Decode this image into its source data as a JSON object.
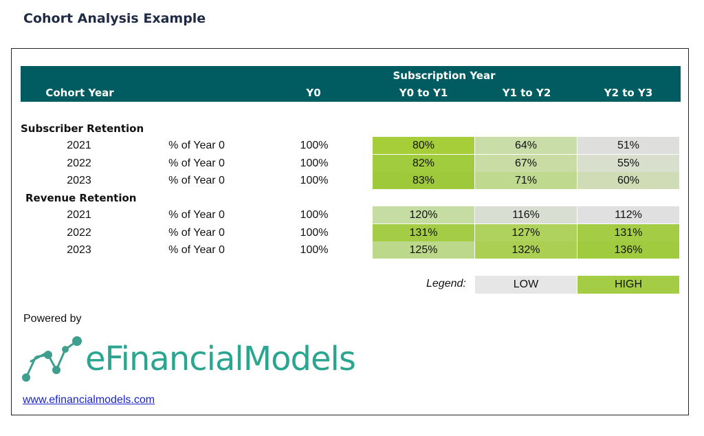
{
  "title": "Cohort Analysis Example",
  "header": {
    "subscription_year": "Subscription Year",
    "cohort_year": "Cohort Year",
    "y0": "Y0",
    "y0_y1": "Y0 to Y1",
    "y1_y2": "Y1 to Y2",
    "y2_y3": "Y2 to Y3"
  },
  "subscriber": {
    "label": "Subscriber Retention",
    "rows": [
      {
        "year": "2021",
        "metric": "% of Year 0",
        "y0": "100%",
        "v": [
          "80%",
          "64%",
          "51%"
        ]
      },
      {
        "year": "2022",
        "metric": "% of Year 0",
        "y0": "100%",
        "v": [
          "82%",
          "67%",
          "55%"
        ]
      },
      {
        "year": "2023",
        "metric": "% of Year 0",
        "y0": "100%",
        "v": [
          "83%",
          "71%",
          "60%"
        ]
      }
    ]
  },
  "revenue": {
    "label": "Revenue Retention",
    "rows": [
      {
        "year": "2021",
        "metric": "% of Year 0",
        "y0": "100%",
        "v": [
          "120%",
          "116%",
          "112%"
        ]
      },
      {
        "year": "2022",
        "metric": "% of Year 0",
        "y0": "100%",
        "v": [
          "131%",
          "127%",
          "131%"
        ]
      },
      {
        "year": "2023",
        "metric": "% of Year 0",
        "y0": "100%",
        "v": [
          "125%",
          "132%",
          "136%"
        ]
      }
    ]
  },
  "legend": {
    "label": "Legend:",
    "low": "LOW",
    "high": "HIGH"
  },
  "colors": {
    "header": "#005c60",
    "sub": [
      [
        "#a6ce39",
        "#c9dda8",
        "#dedfdc"
      ],
      [
        "#a1cc3e",
        "#c8dca4",
        "#d8dfcd"
      ],
      [
        "#9ec93b",
        "#bfd98f",
        "#cfdcb6"
      ]
    ],
    "rev": [
      [
        "#c5dca2",
        "#d9ded3",
        "#e0e0e0"
      ],
      [
        "#a4cd45",
        "#afd25c",
        "#a4cd45"
      ],
      [
        "#bcd88a",
        "#aacf52",
        "#a0cb3e"
      ]
    ],
    "legend_low": "#e6e6e6",
    "legend_high": "#a4cd45"
  },
  "powered_by": "Powered by",
  "brand": {
    "e": "e",
    "name": "FinancialModels"
  },
  "link": "www.efinancialmodels.com"
}
